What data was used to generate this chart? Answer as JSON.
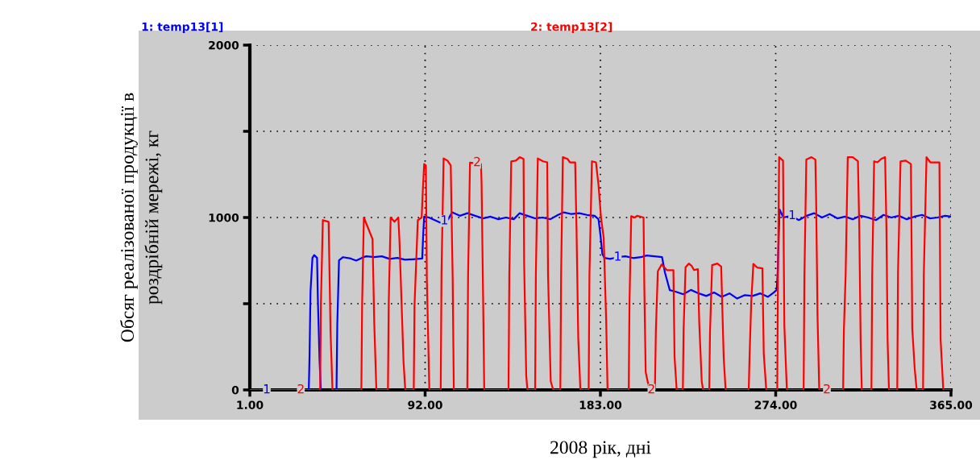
{
  "chart_data": {
    "type": "line",
    "xlabel": "2008 рік, дні",
    "ylabel": "Обсяг реалізованої продукції в\nроздрібній мережі, кг",
    "xlim": [
      1,
      365
    ],
    "ylim": [
      0,
      2000
    ],
    "xticks": [
      {
        "value": 1,
        "label": "1.00"
      },
      {
        "value": 92,
        "label": "92.00"
      },
      {
        "value": 183,
        "label": "183.00"
      },
      {
        "value": 274,
        "label": "274.00"
      },
      {
        "value": 365,
        "label": "365.00"
      }
    ],
    "yticks": [
      0,
      {
        "value": 500,
        "label": null
      },
      1000,
      {
        "value": 1500,
        "label": null
      },
      2000
    ],
    "grid": true,
    "line_style": "solid",
    "marker": "none",
    "series": [
      {
        "name": "1: temp13[1]",
        "color": "#0000ff",
        "x": [
          1,
          31.6,
          32.0,
          32.5,
          33.5,
          34.4,
          35.9,
          36.3,
          37.2,
          37.9,
          46.0,
          46.4,
          47.3,
          49.4,
          53.4,
          56.2,
          59.5,
          61.5,
          65.5,
          69.5,
          73.6,
          77.6,
          81.6,
          85.7,
          90.5,
          91.0,
          91.5,
          94,
          97,
          100,
          104,
          106,
          110,
          114,
          118,
          122,
          126,
          130,
          134,
          138,
          141,
          145,
          149,
          153,
          157,
          161,
          164,
          168,
          172,
          176,
          180,
          182,
          183,
          184,
          185,
          188,
          192,
          196,
          200,
          204,
          207,
          215,
          216.5,
          219,
          222,
          226,
          230,
          234,
          238,
          242,
          246,
          250,
          254,
          258,
          262,
          266,
          270,
          273,
          274.5,
          275,
          276,
          278,
          282,
          286,
          290,
          294,
          298,
          302,
          306,
          310,
          314,
          318,
          322,
          326,
          330,
          334,
          338,
          342,
          346,
          350,
          354,
          358,
          362,
          365
        ],
        "values": [
          0,
          0,
          198,
          571,
          766,
          782,
          766,
          533,
          168,
          0,
          0,
          378,
          752,
          770,
          762,
          750,
          768,
          775,
          770,
          775,
          760,
          766,
          755,
          758,
          762,
          900,
          1005,
          1000,
          985,
          970,
          990,
          1030,
          1010,
          1025,
          1010,
          995,
          1005,
          990,
          1000,
          990,
          1025,
          1010,
          995,
          1000,
          990,
          1015,
          1030,
          1020,
          1025,
          1015,
          1010,
          990,
          900,
          790,
          766,
          760,
          770,
          775,
          765,
          770,
          780,
          770,
          681,
          579,
          570,
          555,
          580,
          560,
          545,
          565,
          540,
          560,
          530,
          550,
          545,
          560,
          540,
          565,
          580,
          673,
          1047,
          1000,
          1010,
          985,
          1010,
          1025,
          1000,
          1020,
          995,
          1005,
          990,
          1010,
          1000,
          985,
          1015,
          1000,
          1010,
          990,
          1005,
          1015,
          995,
          1000,
          1010,
          1005
        ]
      },
      {
        "name": "2: temp13[2]",
        "color": "#ff0000",
        "x": [
          1,
          37.5,
          37.9,
          38.9,
          41.9,
          42.9,
          43.9,
          58.9,
          59.3,
          60.2,
          64.7,
          65.6,
          66.7,
          72.7,
          73.1,
          74.1,
          76.1,
          78.1,
          78.7,
          80.8,
          81.7,
          86.1,
          86.5,
          88.2,
          90.2,
          90.8,
          91.5,
          92.4,
          92.9,
          94.2,
          100.1,
          100.5,
          101.6,
          103.6,
          105.3,
          106.3,
          106.9,
          113.9,
          114.3,
          115.3,
          121.0,
          121.3,
          122.1,
          122.7,
          135.3,
          135.7,
          136.7,
          139.1,
          141.1,
          143.1,
          143.4,
          144.5,
          145.1,
          149.1,
          149.5,
          150.5,
          153.2,
          155.4,
          155.8,
          157.2,
          158.5,
          162.2,
          162.6,
          163.5,
          165.9,
          167.2,
          169.9,
          170.6,
          171.5,
          172.6,
          176.9,
          177.3,
          178.6,
          180.7,
          182.0,
          183.3,
          184.7,
          186.0,
          186.7,
          197.7,
          198.1,
          199.0,
          200.8,
          202.1,
          205.4,
          205.8,
          206.5,
          207.5,
          208.5,
          211.3,
          211.8,
          212.8,
          214.8,
          217.5,
          220.9,
          221.5,
          222.6,
          225.8,
          226.2,
          227.2,
          228.9,
          230.3,
          231.6,
          233.6,
          234.3,
          235.6,
          236.3,
          239.5,
          239.9,
          241.0,
          243.7,
          245.7,
          247.0,
          248.0,
          260.0,
          260.4,
          261.3,
          262.4,
          264.4,
          267.1,
          267.8,
          269.1,
          274.8,
          275.2,
          275.8,
          277.8,
          278.5,
          279.8,
          288.5,
          288.9,
          289.9,
          292.6,
          294.6,
          295.0,
          295.7,
          296.6,
          309.0,
          309.4,
          310.3,
          311.4,
          314.0,
          316.7,
          317.4,
          318.1,
          318.7,
          323.7,
          324.1,
          325.1,
          326.8,
          328.8,
          330.8,
          331.5,
          332.1,
          332.8,
          337.1,
          337.5,
          338.8,
          341.5,
          344.2,
          344.9,
          346.2,
          347.2,
          350.5,
          350.9,
          352.3,
          354.3,
          359.0,
          359.6,
          361.0,
          365
        ],
        "values": [
          0,
          0,
          501,
          985,
          975,
          338,
          0,
          0,
          501,
          1000,
          875,
          385,
          0,
          0,
          500,
          1000,
          975,
          1000,
          860,
          161,
          0,
          0,
          492,
          985,
          1000,
          1156,
          1310,
          1302,
          641,
          0,
          0,
          673,
          1343,
          1330,
          1302,
          650,
          0,
          0,
          664,
          1318,
          1310,
          1202,
          540,
          0,
          0,
          664,
          1326,
          1330,
          1350,
          1340,
          743,
          81,
          0,
          0,
          673,
          1343,
          1326,
          1320,
          673,
          50,
          0,
          0,
          673,
          1350,
          1340,
          1320,
          1320,
          930,
          299,
          0,
          0,
          664,
          1326,
          1320,
          1190,
          1000,
          883,
          400,
          0,
          0,
          509,
          1008,
          1000,
          1010,
          1000,
          595,
          104,
          50,
          0,
          0,
          346,
          688,
          728,
          695,
          695,
          190,
          0,
          0,
          353,
          712,
          733,
          720,
          695,
          700,
          392,
          50,
          0,
          0,
          335,
          724,
          733,
          715,
          190,
          0,
          0,
          180,
          509,
          731,
          710,
          705,
          212,
          0,
          0,
          688,
          1350,
          1330,
          369,
          0,
          0,
          657,
          1336,
          1350,
          1336,
          1101,
          439,
          0,
          0,
          346,
          664,
          1350,
          1350,
          1326,
          930,
          284,
          0,
          0,
          664,
          1326,
          1320,
          1340,
          1350,
          930,
          284,
          0,
          0,
          680,
          1326,
          1330,
          1310,
          355,
          118,
          0,
          0,
          673,
          1350,
          1320,
          1320,
          294,
          0,
          0
        ]
      }
    ],
    "annotations": [
      {
        "text": "1",
        "x": 9.8,
        "y": 0
      },
      {
        "text": "1",
        "x": 102,
        "y": 980
      },
      {
        "text": "1",
        "x": 192,
        "y": 770
      },
      {
        "text": "1",
        "x": 282.6,
        "y": 1010
      },
      {
        "text": "2",
        "x": 27.5,
        "y": 0
      },
      {
        "text": "2",
        "x": 119,
        "y": 1318
      },
      {
        "text": "2",
        "x": 209.5,
        "y": 0
      },
      {
        "text": "2",
        "x": 300.6,
        "y": 0
      }
    ]
  }
}
